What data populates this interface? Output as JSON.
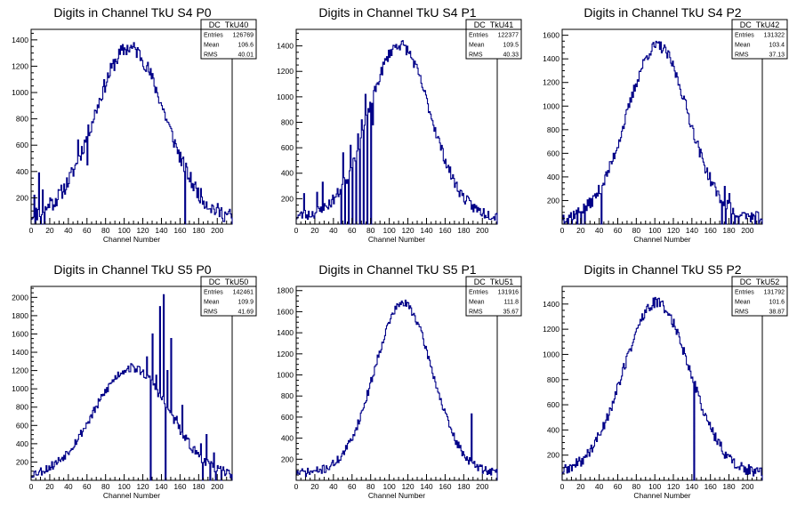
{
  "chart_data": [
    {
      "type": "histogram",
      "title": "Digits in Channel TkU S4 P0",
      "xlabel": "Channel Number",
      "xlim": [
        0,
        216
      ],
      "ylim": [
        0,
        1480
      ],
      "xticks": [
        0,
        20,
        40,
        60,
        80,
        100,
        120,
        140,
        160,
        180,
        200
      ],
      "yticks": [
        200,
        400,
        600,
        800,
        1000,
        1200,
        1400
      ],
      "stats": {
        "name": "DC_TkU40",
        "rows": [
          {
            "label": "Entries",
            "value": "126769"
          },
          {
            "label": "Mean",
            "value": "106.6"
          },
          {
            "label": "RMS",
            "value": "40.01"
          }
        ]
      },
      "shape": {
        "mean": 106,
        "sigma": 38,
        "peak": 1340,
        "base": 40,
        "noise": 60,
        "seed": 11
      },
      "spikes": [
        [
          3,
          220
        ],
        [
          8,
          390
        ],
        [
          12,
          260
        ],
        [
          20,
          200
        ],
        [
          50,
          640
        ],
        [
          60,
          450
        ],
        [
          164,
          400
        ]
      ],
      "gaps": [
        4,
        10,
        14,
        165
      ]
    },
    {
      "type": "histogram",
      "title": "Digits in Channel TkU S4 P1",
      "xlabel": "Channel Number",
      "xlim": [
        0,
        216
      ],
      "ylim": [
        0,
        1530
      ],
      "xticks": [
        0,
        20,
        40,
        60,
        80,
        100,
        120,
        140,
        160,
        180,
        200
      ],
      "yticks": [
        200,
        400,
        600,
        800,
        1000,
        1200,
        1400
      ],
      "stats": {
        "name": "DC_TkU41",
        "rows": [
          {
            "label": "Entries",
            "value": "122377"
          },
          {
            "label": "Mean",
            "value": "109.5"
          },
          {
            "label": "RMS",
            "value": "40.33"
          }
        ]
      },
      "shape": {
        "mean": 111,
        "sigma": 33,
        "peak": 1410,
        "base": 60,
        "noise": 45,
        "seed": 23
      },
      "spikes": [
        [
          8,
          240
        ],
        [
          22,
          250
        ],
        [
          28,
          330
        ],
        [
          50,
          560
        ],
        [
          54,
          320
        ],
        [
          58,
          620
        ],
        [
          62,
          520
        ],
        [
          66,
          710
        ],
        [
          70,
          820
        ],
        [
          74,
          1020
        ],
        [
          78,
          880
        ],
        [
          82,
          780
        ]
      ],
      "gaps": [
        48,
        52,
        56,
        60,
        64,
        68,
        72,
        76,
        80
      ]
    },
    {
      "type": "histogram",
      "title": "Digits in Channel TkU S4 P2",
      "xlabel": "Channel Number",
      "xlim": [
        0,
        216
      ],
      "ylim": [
        0,
        1650
      ],
      "xticks": [
        0,
        20,
        40,
        60,
        80,
        100,
        120,
        140,
        160,
        180,
        200
      ],
      "yticks": [
        200,
        400,
        600,
        800,
        1000,
        1200,
        1400,
        1600
      ],
      "stats": {
        "name": "DC_TkU42",
        "rows": [
          {
            "label": "Entries",
            "value": "131322"
          },
          {
            "label": "Mean",
            "value": "103.4"
          },
          {
            "label": "RMS",
            "value": "37.13"
          }
        ]
      },
      "shape": {
        "mean": 103,
        "sigma": 33,
        "peak": 1510,
        "base": 50,
        "noise": 50,
        "seed": 37
      },
      "spikes": [
        [
          40,
          260
        ],
        [
          175,
          320
        ],
        [
          180,
          260
        ]
      ],
      "gaps": [
        2,
        6,
        10,
        16,
        20,
        24,
        42,
        172,
        176,
        182,
        186,
        190,
        208
      ]
    },
    {
      "type": "histogram",
      "title": "Digits in Channel TkU S5 P0",
      "xlabel": "Channel Number",
      "xlim": [
        0,
        216
      ],
      "ylim": [
        0,
        2120
      ],
      "xticks": [
        0,
        20,
        40,
        60,
        80,
        100,
        120,
        140,
        160,
        180,
        200
      ],
      "yticks": [
        200,
        400,
        600,
        800,
        1000,
        1200,
        1400,
        1600,
        1800,
        2000
      ],
      "stats": {
        "name": "DC_TkU50",
        "rows": [
          {
            "label": "Entries",
            "value": "142461"
          },
          {
            "label": "Mean",
            "value": "109.9"
          },
          {
            "label": "RMS",
            "value": "41.69"
          }
        ]
      },
      "shape": {
        "mean": 108,
        "sigma": 40,
        "peak": 1230,
        "base": 40,
        "noise": 50,
        "seed": 53
      },
      "spikes": [
        [
          124,
          1350
        ],
        [
          130,
          1600
        ],
        [
          134,
          1150
        ],
        [
          138,
          1900
        ],
        [
          142,
          2030
        ],
        [
          146,
          1200
        ],
        [
          150,
          1550
        ],
        [
          156,
          700
        ],
        [
          162,
          820
        ],
        [
          182,
          400
        ],
        [
          188,
          500
        ],
        [
          196,
          300
        ],
        [
          210,
          120
        ]
      ],
      "gaps": [
        128,
        144,
        184,
        192,
        198,
        204
      ]
    },
    {
      "type": "histogram",
      "title": "Digits in Channel TkU S5 P1",
      "xlabel": "Channel Number",
      "xlim": [
        0,
        216
      ],
      "ylim": [
        0,
        1840
      ],
      "xticks": [
        0,
        20,
        40,
        60,
        80,
        100,
        120,
        140,
        160,
        180,
        200
      ],
      "yticks": [
        200,
        400,
        600,
        800,
        1000,
        1200,
        1400,
        1600,
        1800
      ],
      "stats": {
        "name": "DC_TkU51",
        "rows": [
          {
            "label": "Entries",
            "value": "131916"
          },
          {
            "label": "Mean",
            "value": "111.8"
          },
          {
            "label": "RMS",
            "value": "35.67"
          }
        ]
      },
      "shape": {
        "mean": 115,
        "sigma": 31,
        "peak": 1680,
        "base": 70,
        "noise": 40,
        "seed": 71
      },
      "spikes": [
        [
          188,
          630
        ]
      ],
      "gaps": []
    },
    {
      "type": "histogram",
      "title": "Digits in Channel TkU S5 P2",
      "xlabel": "Channel Number",
      "xlim": [
        0,
        216
      ],
      "ylim": [
        0,
        1540
      ],
      "xticks": [
        0,
        20,
        40,
        60,
        80,
        100,
        120,
        140,
        160,
        180,
        200
      ],
      "yticks": [
        200,
        400,
        600,
        800,
        1000,
        1200,
        1400
      ],
      "stats": {
        "name": "DC_TkU52",
        "rows": [
          {
            "label": "Entries",
            "value": "131792"
          },
          {
            "label": "Mean",
            "value": "101.6"
          },
          {
            "label": "RMS",
            "value": "38.87"
          }
        ]
      },
      "shape": {
        "mean": 102,
        "sigma": 36,
        "peak": 1410,
        "base": 50,
        "noise": 45,
        "seed": 89
      },
      "spikes": [
        [
          140,
          820
        ]
      ],
      "gaps": [
        142
      ]
    }
  ]
}
